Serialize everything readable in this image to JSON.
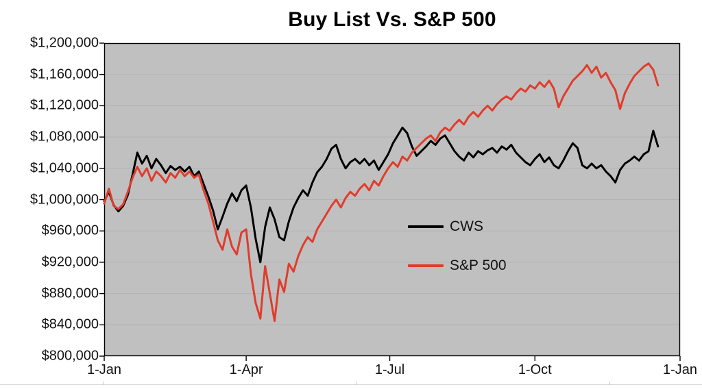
{
  "page": {
    "background": "#ffffff"
  },
  "chart_data": {
    "type": "line",
    "title": "Buy List Vs. S&P 500",
    "plot_bg": "#c0c0c0",
    "axis_color": "#000000",
    "gridline_color": "#b3b3b3",
    "y_min": 800000,
    "y_max": 1200000,
    "y_step": 40000,
    "y_tick_labels": [
      "$800,000",
      "$840,000",
      "$880,000",
      "$920,000",
      "$960,000",
      "$1,000,000",
      "$1,040,000",
      "$1,080,000",
      "$1,120,000",
      "$1,160,000",
      "$1,200,000"
    ],
    "x_tick_labels": [
      "1-Jan",
      "1-Apr",
      "1-Jul",
      "1-Oct",
      "1-Jan"
    ],
    "x_tick_days": [
      0,
      90,
      181,
      273,
      365
    ],
    "x_max_day": 365,
    "legend_position": "inside-middle-right",
    "grid": "horizontal-faint",
    "days": [
      0,
      3,
      6,
      9,
      12,
      15,
      18,
      21,
      24,
      27,
      30,
      33,
      36,
      39,
      42,
      45,
      48,
      51,
      54,
      57,
      60,
      63,
      66,
      69,
      72,
      75,
      78,
      81,
      84,
      87,
      90,
      93,
      96,
      99,
      102,
      105,
      108,
      111,
      114,
      117,
      120,
      123,
      126,
      129,
      132,
      135,
      138,
      141,
      144,
      147,
      150,
      153,
      156,
      159,
      162,
      165,
      168,
      171,
      174,
      177,
      180,
      183,
      186,
      189,
      192,
      195,
      198,
      201,
      204,
      207,
      210,
      213,
      216,
      219,
      222,
      225,
      228,
      231,
      234,
      237,
      240,
      243,
      246,
      249,
      252,
      255,
      258,
      261,
      264,
      267,
      270,
      273,
      276,
      279,
      282,
      285,
      288,
      291,
      294,
      297,
      300,
      303,
      306,
      309,
      312,
      315,
      318,
      321,
      324,
      327,
      330,
      333,
      336,
      339,
      342,
      345,
      348,
      351
    ],
    "series": [
      {
        "name": "CWS",
        "color": "#000000",
        "values": [
          998000,
          1010000,
          993000,
          985000,
          992000,
          1006000,
          1032000,
          1060000,
          1046000,
          1056000,
          1040000,
          1052000,
          1044000,
          1034000,
          1043000,
          1038000,
          1042000,
          1036000,
          1042000,
          1030000,
          1036000,
          1020000,
          1004000,
          986000,
          962000,
          978000,
          995000,
          1008000,
          998000,
          1012000,
          1018000,
          990000,
          950000,
          920000,
          965000,
          990000,
          975000,
          952000,
          948000,
          972000,
          990000,
          1002000,
          1012000,
          1005000,
          1022000,
          1035000,
          1042000,
          1052000,
          1065000,
          1070000,
          1052000,
          1040000,
          1048000,
          1052000,
          1046000,
          1052000,
          1044000,
          1050000,
          1038000,
          1048000,
          1058000,
          1072000,
          1082000,
          1092000,
          1085000,
          1068000,
          1056000,
          1062000,
          1068000,
          1075000,
          1070000,
          1078000,
          1082000,
          1072000,
          1062000,
          1055000,
          1050000,
          1060000,
          1054000,
          1062000,
          1058000,
          1063000,
          1066000,
          1060000,
          1068000,
          1064000,
          1070000,
          1060000,
          1054000,
          1048000,
          1044000,
          1052000,
          1058000,
          1048000,
          1054000,
          1044000,
          1040000,
          1050000,
          1062000,
          1072000,
          1066000,
          1044000,
          1040000,
          1046000,
          1040000,
          1044000,
          1036000,
          1030000,
          1022000,
          1038000,
          1046000,
          1050000,
          1055000,
          1050000,
          1058000,
          1062000,
          1088000,
          1068000
        ]
      },
      {
        "name": "S&P 500",
        "color": "#e03c2c",
        "values": [
          995000,
          1014000,
          992000,
          988000,
          994000,
          1010000,
          1028000,
          1042000,
          1030000,
          1040000,
          1024000,
          1036000,
          1030000,
          1022000,
          1034000,
          1028000,
          1038000,
          1030000,
          1036000,
          1028000,
          1032000,
          1012000,
          995000,
          972000,
          948000,
          936000,
          962000,
          940000,
          930000,
          958000,
          962000,
          905000,
          868000,
          848000,
          915000,
          880000,
          845000,
          898000,
          882000,
          918000,
          908000,
          928000,
          942000,
          952000,
          946000,
          962000,
          972000,
          982000,
          992000,
          1000000,
          990000,
          1002000,
          1010000,
          1005000,
          1014000,
          1020000,
          1012000,
          1024000,
          1018000,
          1030000,
          1040000,
          1048000,
          1042000,
          1055000,
          1050000,
          1060000,
          1066000,
          1072000,
          1078000,
          1082000,
          1075000,
          1086000,
          1092000,
          1088000,
          1096000,
          1102000,
          1096000,
          1106000,
          1112000,
          1106000,
          1114000,
          1120000,
          1114000,
          1122000,
          1128000,
          1132000,
          1128000,
          1136000,
          1142000,
          1138000,
          1146000,
          1142000,
          1150000,
          1144000,
          1152000,
          1142000,
          1118000,
          1132000,
          1142000,
          1152000,
          1158000,
          1164000,
          1172000,
          1162000,
          1170000,
          1156000,
          1162000,
          1150000,
          1140000,
          1116000,
          1136000,
          1148000,
          1158000,
          1164000,
          1170000,
          1174000,
          1166000,
          1146000
        ]
      }
    ]
  }
}
